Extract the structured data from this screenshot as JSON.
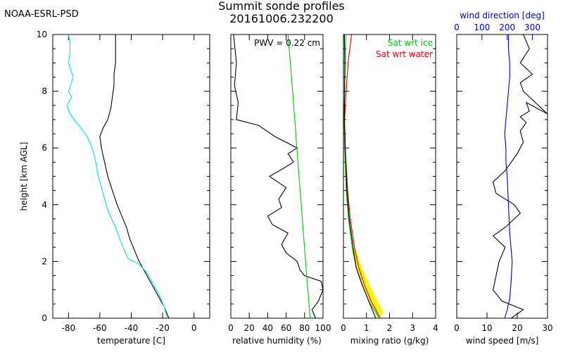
{
  "header": {
    "org": "NOAA-ESRL-PSD",
    "title": "Summit sonde profiles",
    "subtitle": "20161006.232200"
  },
  "chart_data": [
    {
      "type": "line",
      "xlabel": "temperature [C]",
      "ylabel": "height [km AGL]",
      "xlim": [
        -90,
        10
      ],
      "ylim": [
        0,
        10
      ],
      "xticks": [
        "-80",
        "-60",
        "-40",
        "-20",
        "0"
      ],
      "yticks": [
        "0",
        "2",
        "4",
        "6",
        "8",
        "10"
      ],
      "series": [
        {
          "color": "#000000",
          "x": [
            -16,
            -19,
            -23,
            -27,
            -31,
            -35,
            -38,
            -41,
            -43,
            -46,
            -49,
            -52,
            -55,
            -57,
            -59,
            -60,
            -58,
            -55,
            -53,
            -52,
            -51,
            -51,
            -50,
            -50,
            -50,
            -50
          ],
          "y": [
            0,
            0.4,
            0.8,
            1.2,
            1.6,
            2,
            2.4,
            2.8,
            3.2,
            3.6,
            4,
            4.5,
            5,
            5.5,
            6,
            6.4,
            6.7,
            7,
            7.4,
            7.8,
            8.2,
            8.6,
            9,
            9.3,
            9.6,
            10
          ]
        },
        {
          "color": "#00e5e5",
          "x": [
            -17,
            -19,
            -22,
            -26,
            -30,
            -35,
            -42,
            -46,
            -50,
            -55,
            -58,
            -61,
            -63,
            -65,
            -68,
            -72,
            -75,
            -79,
            -81,
            -78,
            -80,
            -77,
            -80,
            -79,
            -79,
            -80
          ],
          "y": [
            0,
            0.4,
            0.8,
            1.2,
            1.6,
            1.9,
            2.1,
            2.6,
            3.2,
            3.8,
            4.4,
            5,
            5.6,
            6,
            6.4,
            6.7,
            6.9,
            7.2,
            7.5,
            7.8,
            8,
            8.5,
            9,
            9.4,
            9.7,
            10
          ]
        }
      ]
    },
    {
      "type": "line",
      "xlabel": "relative humidity (%)",
      "ylim": [
        0,
        10
      ],
      "xlim": [
        0,
        100
      ],
      "xticks": [
        "0",
        "20",
        "40",
        "60",
        "80",
        "100"
      ],
      "annotation": "PWV = 0.22 cm",
      "series": [
        {
          "color": "#000000",
          "x": [
            92,
            88,
            95,
            100,
            98,
            80,
            75,
            72,
            60,
            55,
            62,
            45,
            40,
            55,
            52,
            60,
            42,
            58,
            68,
            62,
            72,
            48,
            30,
            6,
            8,
            4,
            6,
            3
          ],
          "y": [
            0,
            0.3,
            0.6,
            1,
            1.3,
            1.5,
            1.7,
            2,
            2.3,
            2.6,
            3,
            3.3,
            3.6,
            3.9,
            4.2,
            4.6,
            5,
            5.3,
            5.5,
            5.8,
            6,
            6.4,
            6.8,
            7,
            7.6,
            8.2,
            9,
            10
          ]
        },
        {
          "color": "#00c800",
          "x": [
            86,
            82,
            78,
            74,
            70,
            66,
            62
          ],
          "y": [
            0,
            1.6,
            3.3,
            5,
            6.7,
            8.4,
            10
          ]
        }
      ]
    },
    {
      "type": "line",
      "xlabel": "mixing ratio (g/kg)",
      "ylim": [
        0,
        10
      ],
      "xlim": [
        0,
        4
      ],
      "xticks": [
        "0",
        "1",
        "2",
        "3",
        "4"
      ],
      "series": [
        {
          "name": "Sat wrt ice",
          "color": "#00c800",
          "x": [
            1.55,
            1.1,
            0.8,
            0.55,
            0.38,
            0.22,
            0.12,
            0.05,
            0.03,
            0.05,
            0.08,
            0.1
          ],
          "y": [
            0,
            0.6,
            1.2,
            1.8,
            2.5,
            3.5,
            4.5,
            6,
            7,
            8,
            9,
            10
          ]
        },
        {
          "name": "Sat wrt water",
          "color": "#e00000",
          "x": [
            1.6,
            1.2,
            0.9,
            0.66,
            0.48,
            0.3,
            0.18,
            0.08,
            0.05,
            0.12,
            0.2,
            0.35
          ],
          "y": [
            0,
            0.6,
            1.2,
            1.8,
            2.5,
            3.5,
            4.5,
            6,
            7,
            8,
            9,
            10
          ]
        },
        {
          "color": "#000000",
          "x": [
            1.4,
            1.1,
            0.8,
            0.55,
            0.42,
            0.25,
            0.15,
            0.08,
            0.04,
            0.05,
            0.06,
            0.04
          ],
          "y": [
            0,
            0.6,
            1.2,
            1.8,
            2.5,
            3.5,
            4.5,
            6,
            7,
            8,
            9,
            10
          ]
        }
      ]
    },
    {
      "type": "line",
      "xlabel": "wind speed [m/s]",
      "x2label": "wind direction [deg]",
      "ylim": [
        0,
        10
      ],
      "xlim": [
        0,
        30
      ],
      "xticks": [
        "0",
        "10",
        "20",
        "30"
      ],
      "x2lim": [
        0,
        360
      ],
      "x2ticks": [
        "0",
        "100",
        "200",
        "300"
      ],
      "series": [
        {
          "color": "#000000",
          "x": [
            18,
            22,
            15,
            12,
            13,
            14,
            16,
            12,
            16,
            18,
            21,
            19,
            13,
            12,
            16,
            20,
            22,
            21,
            23,
            21,
            24,
            23,
            30,
            22,
            21,
            25,
            21,
            24,
            22
          ],
          "y": [
            0,
            0.3,
            0.6,
            1,
            1.5,
            2,
            2.5,
            2.9,
            3.2,
            3.4,
            3.7,
            4,
            4.4,
            4.8,
            5.2,
            5.8,
            6.2,
            6.6,
            6.9,
            7.1,
            7.3,
            7.6,
            7.2,
            8,
            8.3,
            8.6,
            9,
            9.5,
            10
          ]
        },
        {
          "color": "#0000c8",
          "axis": "x2",
          "x": [
            190,
            200,
            210,
            215,
            220,
            210,
            205,
            200,
            195,
            195,
            190,
            195,
            200,
            205,
            210,
            210,
            205,
            205
          ],
          "y": [
            0,
            0.3,
            0.7,
            1.2,
            2,
            3,
            4,
            5,
            5.5,
            6,
            6.5,
            7,
            7.5,
            8,
            8.5,
            9,
            9.5,
            10
          ]
        }
      ]
    }
  ]
}
